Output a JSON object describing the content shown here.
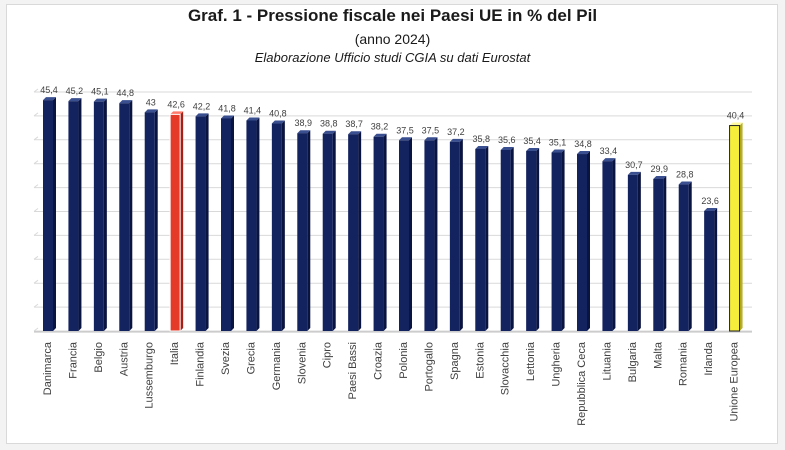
{
  "title": "Graf. 1 - Pressione fiscale nei Paesi UE in % del Pil",
  "subtitle": "(anno 2024)",
  "source": "Elaborazione Ufficio studi CGIA su dati Eurostat",
  "colors": {
    "bar": "#13235f",
    "bar_top": "#3a4f8f",
    "bar_side": "#0a1440",
    "highlight": "#e53a28",
    "highlight_top": "#ff7a6a",
    "eu": "#f5ee3a",
    "eu_top": "#fffaa0",
    "grid": "#d9d9d9"
  },
  "chart_data": {
    "type": "bar",
    "categories": [
      "Danimarca",
      "Francia",
      "Belgio",
      "Austria",
      "Lussemburgo",
      "Italia",
      "Finlandia",
      "Svezia",
      "Grecia",
      "Germania",
      "Slovenia",
      "Cipro",
      "Paesi Bassi",
      "Croazia",
      "Polonia",
      "Portogallo",
      "Spagna",
      "Estonia",
      "Slovacchia",
      "Lettonia",
      "Ungheria",
      "Repubblica Ceca",
      "Lituania",
      "Bulgaria",
      "Malta",
      "Romania",
      "Irlanda",
      "Unione Europea"
    ],
    "values": [
      45.4,
      45.2,
      45.1,
      44.8,
      43,
      42.6,
      42.2,
      41.8,
      41.4,
      40.8,
      38.9,
      38.8,
      38.7,
      38.2,
      37.5,
      37.5,
      37.2,
      35.8,
      35.6,
      35.4,
      35.1,
      34.8,
      33.4,
      30.7,
      29.9,
      28.8,
      23.6,
      40.4
    ],
    "value_labels": [
      "45,4",
      "45,2",
      "45,1",
      "44,8",
      "43",
      "42,6",
      "42,2",
      "41,8",
      "41,4",
      "40,8",
      "38,9",
      "38,8",
      "38,7",
      "38,2",
      "37,5",
      "37,5",
      "37,2",
      "35,8",
      "35,6",
      "35,4",
      "35,1",
      "34,8",
      "33,4",
      "30,7",
      "29,9",
      "28,8",
      "23,6",
      "40,4"
    ],
    "highlight": "Italia",
    "aggregate": "Unione Europea",
    "ylim": [
      0,
      47
    ],
    "grid": true,
    "legend": "none"
  }
}
